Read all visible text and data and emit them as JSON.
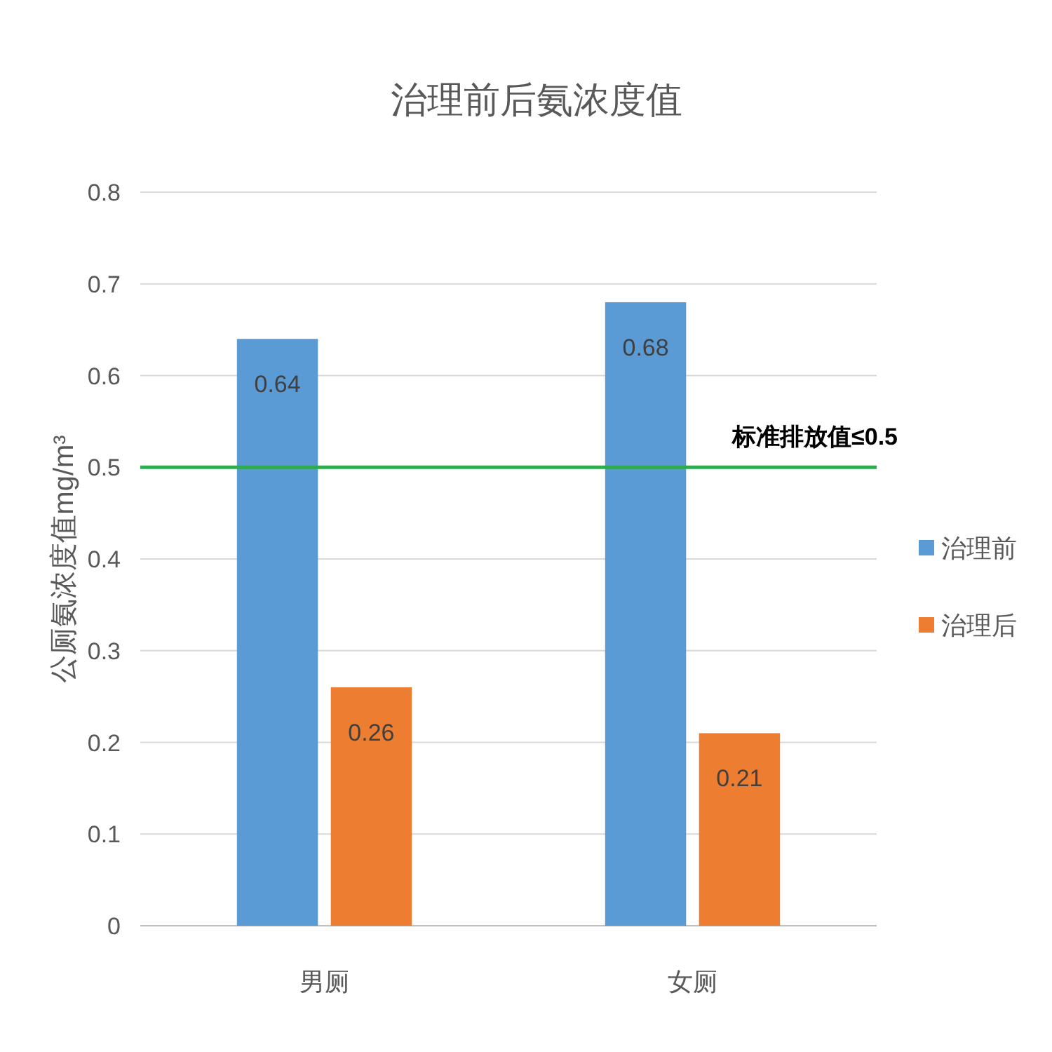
{
  "chart_data": {
    "type": "bar",
    "title": "治理前后氨浓度值",
    "ylabel": "公厕氨浓度值mg/m³",
    "categories": [
      "男厕",
      "女厕"
    ],
    "series": [
      {
        "name": "治理前",
        "color": "#5b9bd5",
        "values": [
          0.64,
          0.68
        ]
      },
      {
        "name": "治理后",
        "color": "#ed7d31",
        "values": [
          0.26,
          0.21
        ]
      }
    ],
    "ylim": [
      0,
      0.8
    ],
    "yticks": [
      0,
      0.1,
      0.2,
      0.3,
      0.4,
      0.5,
      0.6,
      0.7,
      0.8
    ],
    "grid": "y",
    "legend": "right",
    "data_labels": true,
    "ref_lines": [
      {
        "axis": "y",
        "value": 0.5,
        "label": "标准排放值≤0.5",
        "color": "#2eaa4f"
      }
    ]
  }
}
